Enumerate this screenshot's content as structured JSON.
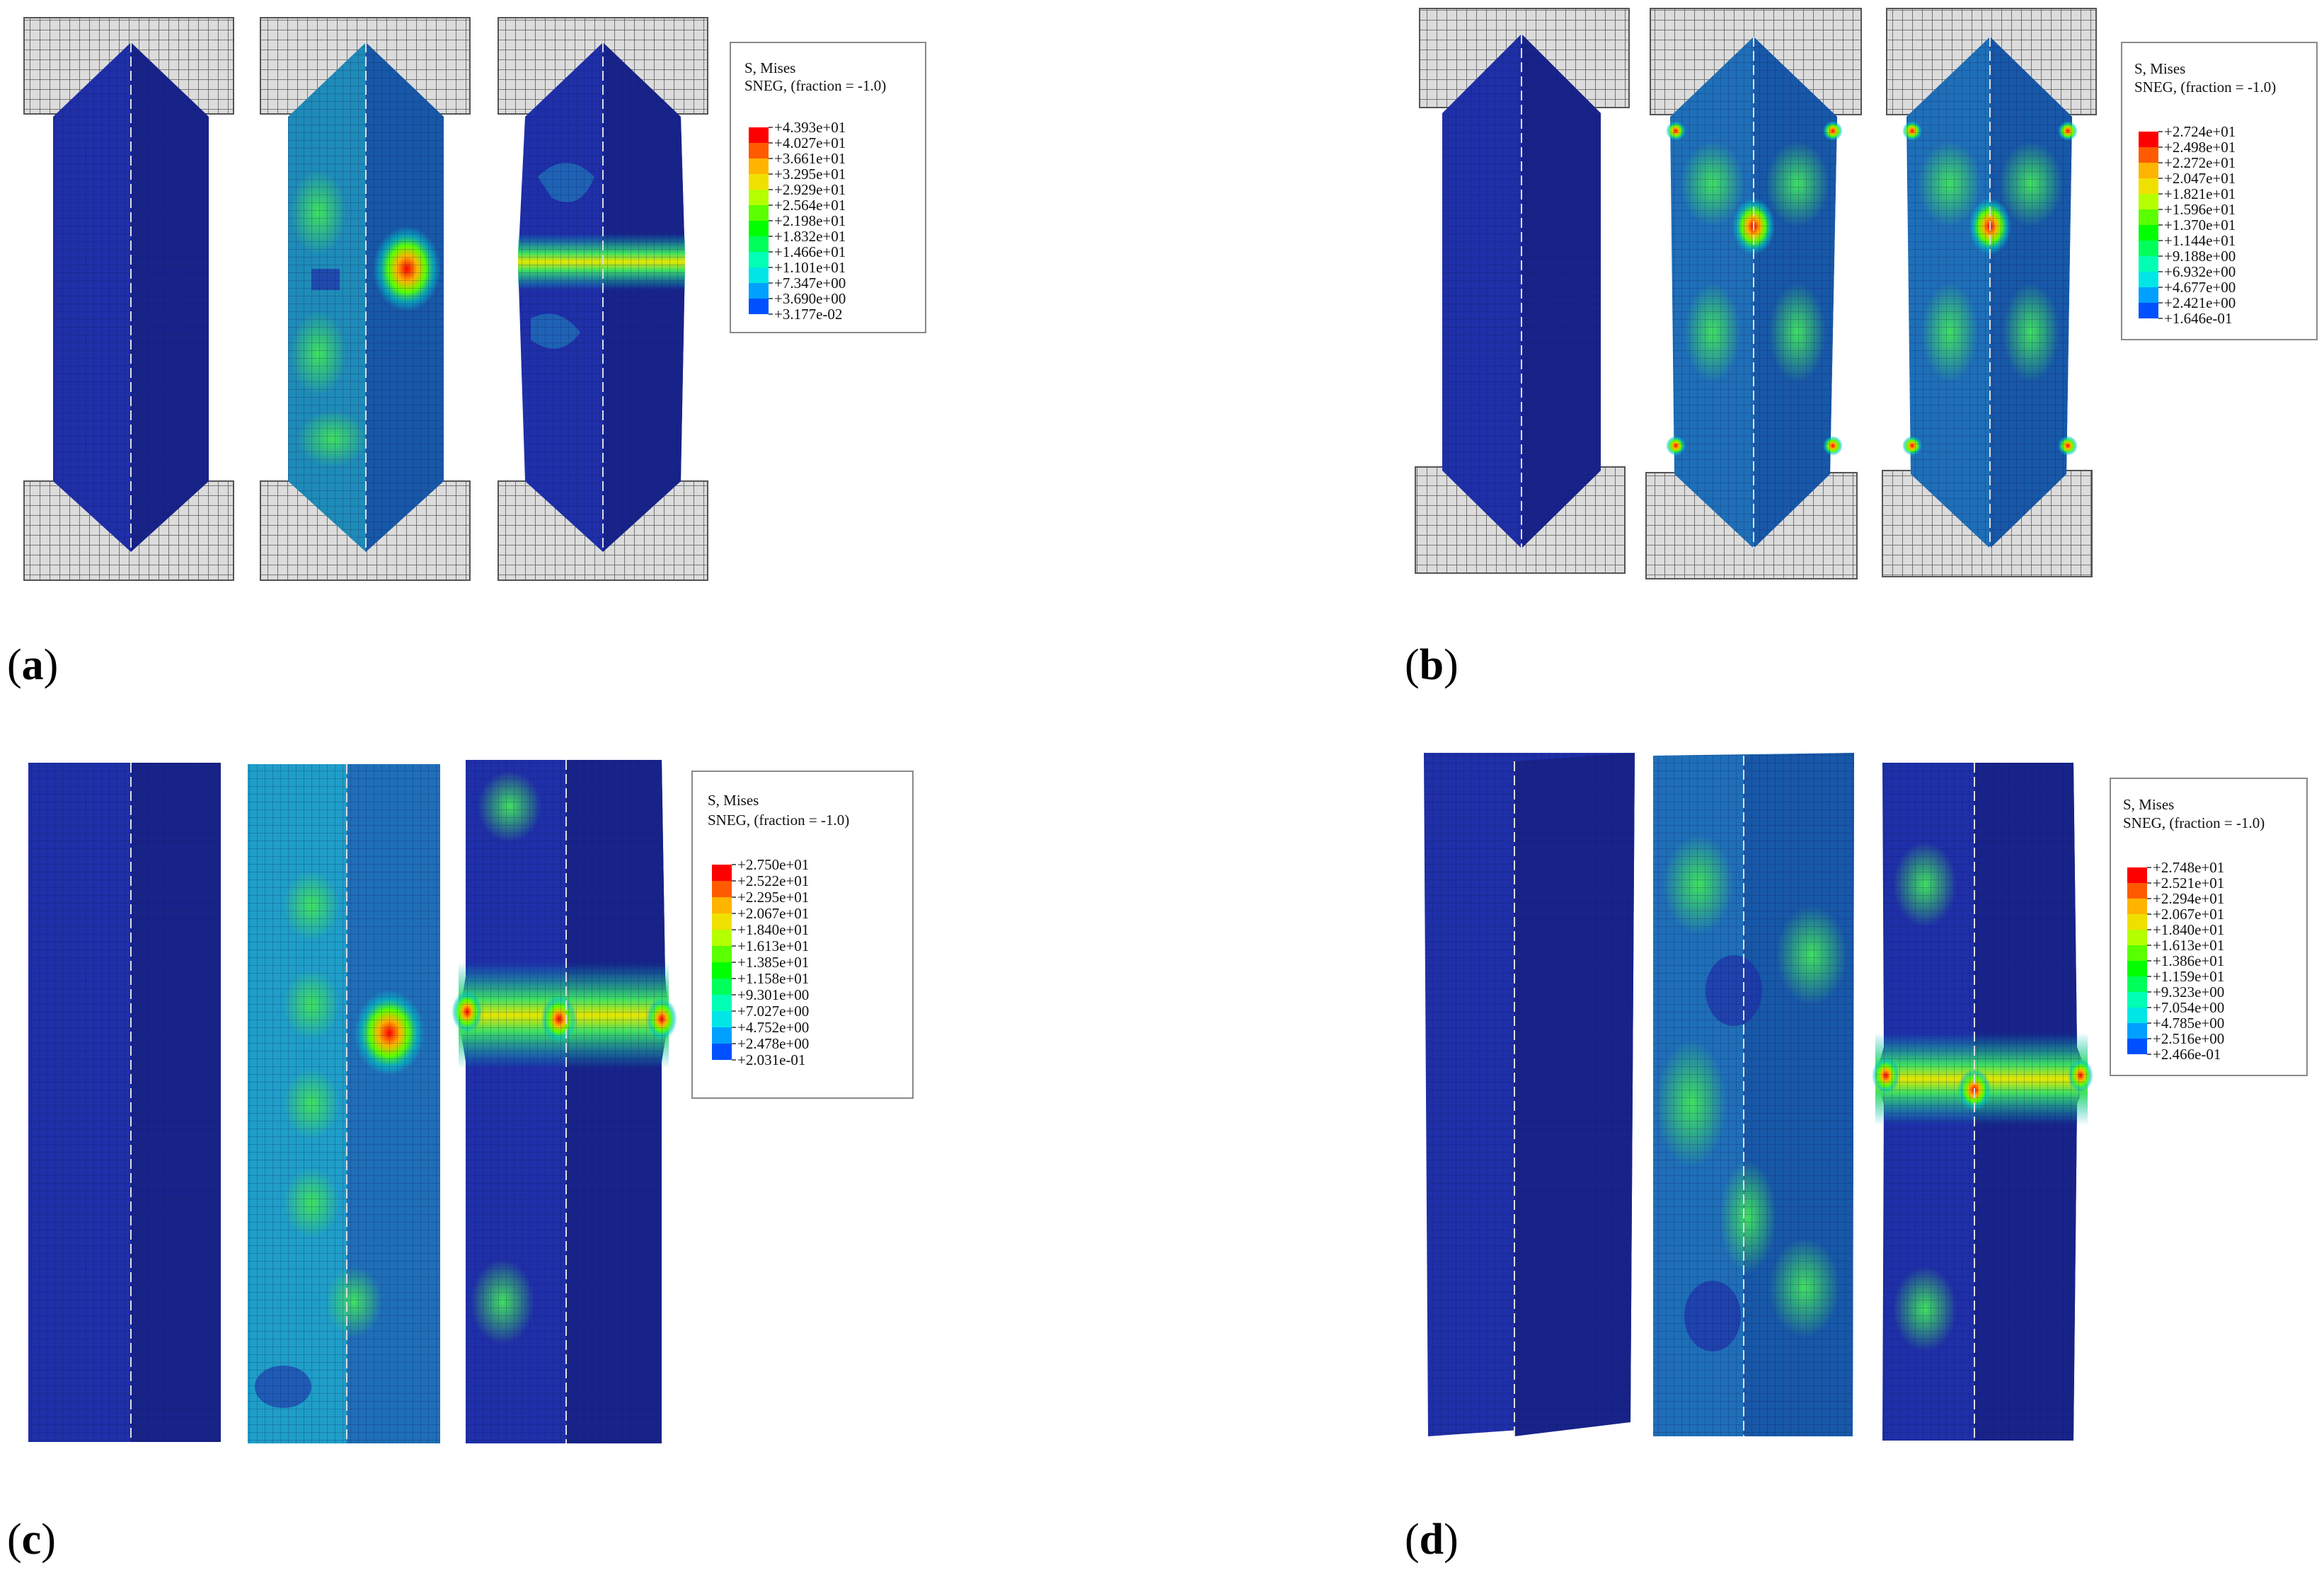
{
  "panels": [
    {
      "label": "a",
      "legend": {
        "title1": "S, Mises",
        "title2": "SNEG, (fraction = -1.0)",
        "values": [
          "+4.393e+01",
          "+4.027e+01",
          "+3.661e+01",
          "+3.295e+01",
          "+2.929e+01",
          "+2.564e+01",
          "+2.198e+01",
          "+1.832e+01",
          "+1.466e+01",
          "+1.101e+01",
          "+7.347e+00",
          "+3.690e+00",
          "+3.177e-02"
        ]
      }
    },
    {
      "label": "b",
      "legend": {
        "title1": "S, Mises",
        "title2": "SNEG, (fraction = -1.0)",
        "values": [
          "+2.724e+01",
          "+2.498e+01",
          "+2.272e+01",
          "+2.047e+01",
          "+1.821e+01",
          "+1.596e+01",
          "+1.370e+01",
          "+1.144e+01",
          "+9.188e+00",
          "+6.932e+00",
          "+4.677e+00",
          "+2.421e+00",
          "+1.646e-01"
        ]
      }
    },
    {
      "label": "c",
      "legend": {
        "title1": "S, Mises",
        "title2": "SNEG, (fraction = -1.0)",
        "values": [
          "+2.750e+01",
          "+2.522e+01",
          "+2.295e+01",
          "+2.067e+01",
          "+1.840e+01",
          "+1.613e+01",
          "+1.385e+01",
          "+1.158e+01",
          "+9.301e+00",
          "+7.027e+00",
          "+4.752e+00",
          "+2.478e+00",
          "+2.031e-01"
        ]
      }
    },
    {
      "label": "d",
      "legend": {
        "title1": "S, Mises",
        "title2": "SNEG, (fraction = -1.0)",
        "values": [
          "+2.748e+01",
          "+2.521e+01",
          "+2.294e+01",
          "+2.067e+01",
          "+1.840e+01",
          "+1.613e+01",
          "+1.386e+01",
          "+1.159e+01",
          "+9.323e+00",
          "+7.054e+00",
          "+4.785e+00",
          "+2.516e+00",
          "+2.466e-01"
        ]
      }
    }
  ],
  "colors": {
    "contour": [
      "#ff0000",
      "#ff5a00",
      "#ffb400",
      "#f0e000",
      "#b4ff00",
      "#5aff00",
      "#00ff00",
      "#00ff5a",
      "#00ffb4",
      "#00e6e6",
      "#00a0ff",
      "#0050ff",
      "#0000ff"
    ],
    "base_blue": "#1f2fa8",
    "plate_fill": "#d8d8d8",
    "plate_line": "#555555"
  }
}
